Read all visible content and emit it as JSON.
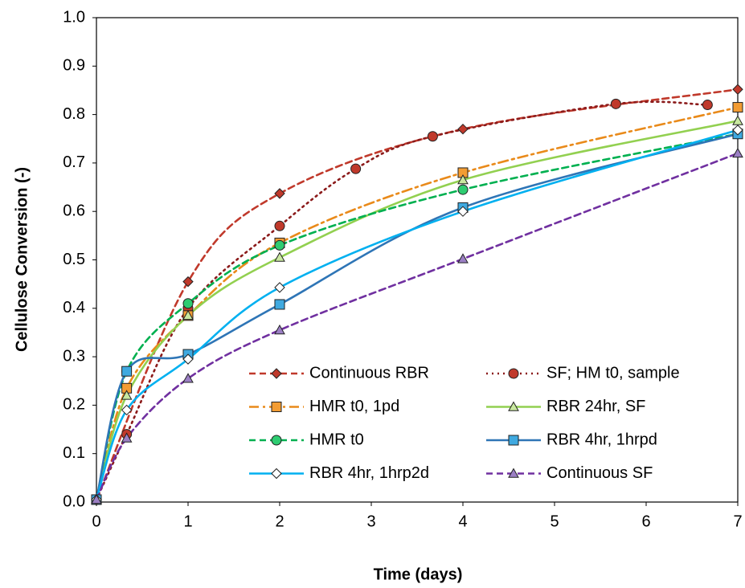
{
  "chart_data": {
    "type": "line",
    "xlabel": "Time (days)",
    "ylabel": "Cellulose Conversion (-)",
    "xlim": [
      0,
      7
    ],
    "ylim": [
      0,
      1
    ],
    "xticks": [
      0,
      1,
      2,
      3,
      4,
      5,
      6,
      7
    ],
    "yticks": [
      {
        "value": 0,
        "label": "0.0"
      },
      0.1,
      0.2,
      0.3,
      0.4,
      0.5,
      0.6,
      0.7,
      0.8,
      0.9,
      {
        "value": 1,
        "label": "1.0"
      }
    ],
    "series": [
      {
        "name": "Continuous RBR",
        "color": "#c0392b",
        "dash": "8,5",
        "marker": "diamond",
        "marker_fill": "#c0392b",
        "x": [
          0,
          1,
          2,
          4,
          7
        ],
        "values": [
          0.005,
          0.455,
          0.637,
          0.77,
          0.852
        ]
      },
      {
        "name": "SF; HM t0, sample",
        "color": "#8b1a1a",
        "dash": "2,5",
        "marker": "circle",
        "marker_fill": "#c0392b",
        "x": [
          0,
          0.33,
          1,
          2,
          2.83,
          3.67,
          5.67,
          6.67
        ],
        "values": [
          0.005,
          0.14,
          0.4,
          0.57,
          0.688,
          0.755,
          0.822,
          0.82
        ]
      },
      {
        "name": "HMR t0, 1pd",
        "color": "#e98a1a",
        "dash": "12,5,3,5",
        "marker": "square",
        "marker_fill": "#f39c33",
        "x": [
          0,
          0.33,
          1,
          2,
          4,
          7
        ],
        "values": [
          0.005,
          0.235,
          0.385,
          0.535,
          0.68,
          0.815
        ]
      },
      {
        "name": "RBR 24hr, SF",
        "color": "#92d050",
        "dash": "",
        "marker": "triangle",
        "marker_fill": "#c9e8a0",
        "x": [
          0,
          0.33,
          1,
          2,
          4,
          7
        ],
        "values": [
          0.005,
          0.22,
          0.385,
          0.505,
          0.665,
          0.787
        ]
      },
      {
        "name": "HMR t0",
        "color": "#00b050",
        "dash": "8,5",
        "marker": "circle",
        "marker_fill": "#2ecc71",
        "x": [
          0,
          0.33,
          1,
          2,
          4,
          7
        ],
        "values": [
          0.005,
          0.27,
          0.41,
          0.53,
          0.645,
          0.76
        ]
      },
      {
        "name": "RBR 4hr, 1hrpd",
        "color": "#2e75b6",
        "dash": "",
        "marker": "square",
        "marker_fill": "#3fa9e0",
        "x": [
          0,
          0.33,
          1,
          2,
          4,
          7
        ],
        "values": [
          0.005,
          0.27,
          0.305,
          0.408,
          0.608,
          0.76
        ]
      },
      {
        "name": "RBR 4hr, 1hrp2d",
        "color": "#00b0f0",
        "dash": "",
        "marker": "diamond",
        "marker_fill": "#ffffff",
        "x": [
          0,
          0.33,
          1,
          2,
          4,
          7
        ],
        "values": [
          0.005,
          0.19,
          0.295,
          0.443,
          0.6,
          0.768
        ]
      },
      {
        "name": "Continuous SF",
        "color": "#7030a0",
        "dash": "8,5",
        "marker": "triangle",
        "marker_fill": "#9b7fc4",
        "x": [
          0,
          0.33,
          1,
          2,
          4,
          7
        ],
        "values": [
          0.005,
          0.132,
          0.255,
          0.355,
          0.502,
          0.72
        ]
      }
    ]
  }
}
